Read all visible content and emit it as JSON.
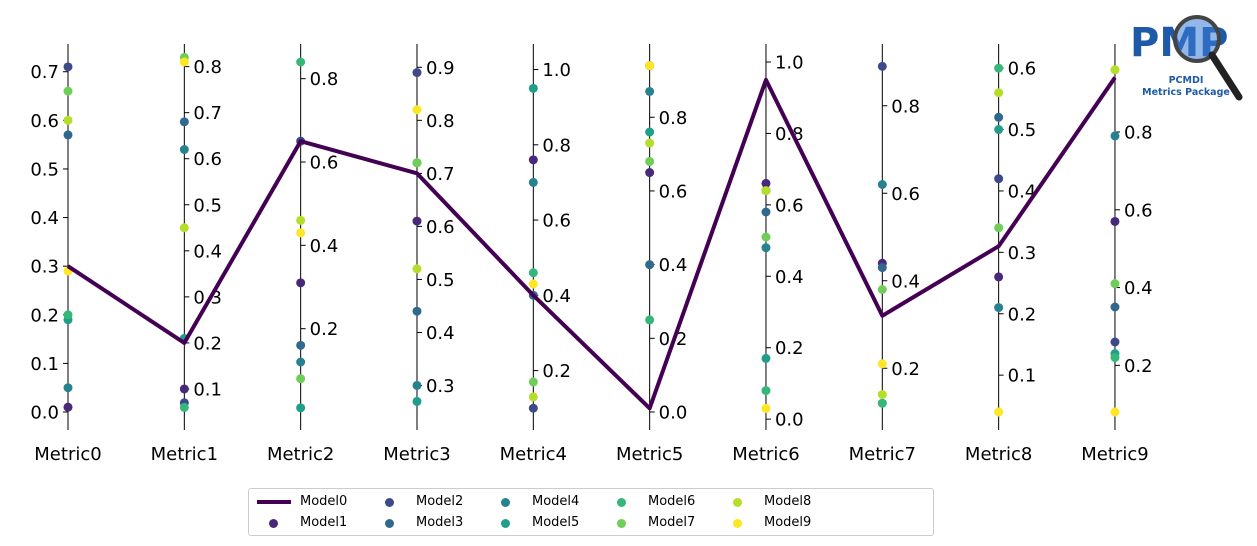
{
  "chart_data": {
    "type": "parallel_coordinates",
    "categories": [
      "Metric0",
      "Metric1",
      "Metric2",
      "Metric3",
      "Metric4",
      "Metric5",
      "Metric6",
      "Metric7",
      "Metric8",
      "Metric9"
    ],
    "axes": [
      {
        "name": "Metric0",
        "range": [
          0.0,
          0.72
        ],
        "ticks": [
          0.0,
          0.1,
          0.2,
          0.3,
          0.4,
          0.5,
          0.6,
          0.7
        ],
        "tick_side": "left"
      },
      {
        "name": "Metric1",
        "range": [
          0.05,
          0.81
        ],
        "ticks": [
          0.1,
          0.2,
          0.3,
          0.4,
          0.5,
          0.6,
          0.7,
          0.8
        ],
        "tick_side": "right"
      },
      {
        "name": "Metric2",
        "range": [
          0.0,
          0.84
        ],
        "ticks": [
          0.2,
          0.4,
          0.6,
          0.8
        ],
        "tick_side": "right"
      },
      {
        "name": "Metric3",
        "range": [
          0.25,
          0.91
        ],
        "ticks": [
          0.3,
          0.4,
          0.5,
          0.6,
          0.7,
          0.8,
          0.9
        ],
        "tick_side": "right"
      },
      {
        "name": "Metric4",
        "range": [
          0.09,
          1.02
        ],
        "ticks": [
          0.2,
          0.4,
          0.6,
          0.8,
          1.0
        ],
        "tick_side": "right"
      },
      {
        "name": "Metric5",
        "range": [
          0.0,
          0.95
        ],
        "ticks": [
          0.0,
          0.2,
          0.4,
          0.6,
          0.8
        ],
        "tick_side": "right"
      },
      {
        "name": "Metric6",
        "range": [
          0.02,
          1.0
        ],
        "ticks": [
          0.0,
          0.2,
          0.4,
          0.6,
          0.8,
          1.0
        ],
        "tick_side": "right"
      },
      {
        "name": "Metric7",
        "range": [
          0.1,
          0.9
        ],
        "ticks": [
          0.2,
          0.4,
          0.6,
          0.8
        ],
        "tick_side": "right"
      },
      {
        "name": "Metric8",
        "range": [
          0.04,
          0.61
        ],
        "ticks": [
          0.1,
          0.2,
          0.3,
          0.4,
          0.5,
          0.6
        ],
        "tick_side": "right"
      },
      {
        "name": "Metric9",
        "range": [
          0.08,
          0.98
        ],
        "ticks": [
          0.2,
          0.4,
          0.6,
          0.8
        ],
        "tick_side": "right"
      }
    ],
    "series": [
      {
        "name": "Model0",
        "color": "#440154",
        "style": "line",
        "values": [
          0.3,
          0.2,
          0.65,
          0.7,
          0.4,
          0.01,
          0.95,
          0.32,
          0.31,
          0.94
        ]
      },
      {
        "name": "Model1",
        "color": "#482878",
        "style": "marker",
        "values": [
          0.01,
          0.1,
          0.31,
          0.61,
          0.76,
          0.65,
          0.66,
          0.44,
          0.26,
          0.57
        ]
      },
      {
        "name": "Model2",
        "color": "#3e4989",
        "style": "marker",
        "values": [
          0.71,
          0.07,
          0.65,
          0.89,
          0.1,
          0.94,
          0.64,
          0.89,
          0.42,
          0.26
        ]
      },
      {
        "name": "Model3",
        "color": "#31688e",
        "style": "marker",
        "values": [
          0.57,
          0.68,
          0.16,
          0.44,
          0.4,
          0.4,
          0.58,
          0.43,
          0.52,
          0.35
        ]
      },
      {
        "name": "Model4",
        "color": "#26828e",
        "style": "marker",
        "values": [
          0.05,
          0.62,
          0.12,
          0.3,
          0.7,
          0.87,
          0.48,
          0.62,
          0.21,
          0.79
        ]
      },
      {
        "name": "Model5",
        "color": "#1f9e89",
        "style": "marker",
        "values": [
          0.19,
          0.21,
          0.01,
          0.27,
          0.95,
          0.76,
          0.17,
          0.12,
          0.5,
          0.23
        ]
      },
      {
        "name": "Model6",
        "color": "#35b779",
        "style": "marker",
        "values": [
          0.2,
          0.06,
          0.84,
          0.72,
          0.46,
          0.25,
          0.08,
          0.12,
          0.6,
          0.22
        ]
      },
      {
        "name": "Model7",
        "color": "#6ece58",
        "style": "marker",
        "values": [
          0.66,
          0.82,
          0.08,
          0.72,
          0.17,
          0.68,
          0.51,
          0.38,
          0.34,
          0.41
        ]
      },
      {
        "name": "Model8",
        "color": "#b5de2b",
        "style": "marker",
        "values": [
          0.6,
          0.45,
          0.46,
          0.52,
          0.13,
          0.73,
          0.64,
          0.14,
          0.56,
          0.96
        ]
      },
      {
        "name": "Model9",
        "color": "#fde725",
        "style": "marker",
        "values": [
          0.29,
          0.81,
          0.43,
          0.82,
          0.43,
          0.94,
          0.03,
          0.21,
          0.04,
          0.08
        ]
      }
    ],
    "legend": "bottom-center, 6 columns"
  },
  "logo": {
    "letters": "PMP",
    "line1": "PCMDI",
    "line2": "Metrics Package"
  }
}
